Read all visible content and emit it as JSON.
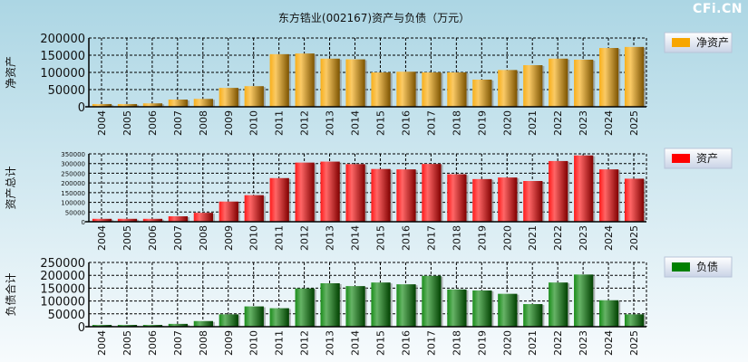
{
  "title": "东方锆业(002167)资产与负债（万元）",
  "watermark": "CFi.CN",
  "chart_data": [
    {
      "type": "bar",
      "ylabel": "净资产",
      "legend": "净资产",
      "color": "#f7a600",
      "ylim": [
        0,
        200000
      ],
      "yticks": [
        0,
        50000,
        100000,
        150000,
        200000
      ],
      "categories": [
        "2004",
        "2005",
        "2006",
        "2007",
        "2008",
        "2009",
        "2010",
        "2011",
        "2012",
        "2013",
        "2014",
        "2015",
        "2016",
        "2017",
        "2018",
        "2019",
        "2020",
        "2021",
        "2022",
        "2023",
        "2024",
        "2025"
      ],
      "values": [
        8000,
        8000,
        10000,
        21000,
        23000,
        55000,
        60000,
        153000,
        155000,
        140000,
        138000,
        100000,
        102000,
        100000,
        100000,
        79000,
        107000,
        121000,
        140000,
        137000,
        171000,
        174000
      ]
    },
    {
      "type": "bar",
      "ylabel": "资产总计",
      "legend": "资产",
      "color": "#ff0000",
      "ylim": [
        0,
        350000
      ],
      "yticks": [
        0,
        50000,
        100000,
        150000,
        200000,
        250000,
        300000,
        350000
      ],
      "categories": [
        "2004",
        "2005",
        "2006",
        "2007",
        "2008",
        "2009",
        "2010",
        "2011",
        "2012",
        "2013",
        "2014",
        "2015",
        "2016",
        "2017",
        "2018",
        "2019",
        "2020",
        "2021",
        "2022",
        "2023",
        "2024",
        "2025"
      ],
      "values": [
        15000,
        15000,
        15000,
        28000,
        46000,
        104000,
        137000,
        225000,
        305000,
        310000,
        297000,
        272000,
        270000,
        298000,
        245000,
        220000,
        228000,
        210000,
        313000,
        342000,
        270000,
        222000
      ]
    },
    {
      "type": "bar",
      "ylabel": "负债合计",
      "legend": "负债",
      "color": "#008000",
      "ylim": [
        0,
        250000
      ],
      "yticks": [
        0,
        50000,
        100000,
        150000,
        200000,
        250000
      ],
      "categories": [
        "2004",
        "2005",
        "2006",
        "2007",
        "2008",
        "2009",
        "2010",
        "2011",
        "2012",
        "2013",
        "2014",
        "2015",
        "2016",
        "2017",
        "2018",
        "2019",
        "2020",
        "2021",
        "2022",
        "2023",
        "2024",
        "2025"
      ],
      "values": [
        7000,
        7000,
        7000,
        11000,
        22000,
        48000,
        79000,
        72000,
        149000,
        169000,
        158000,
        172000,
        165000,
        198000,
        145000,
        141000,
        128000,
        88000,
        172000,
        203000,
        103000,
        48000
      ]
    }
  ]
}
